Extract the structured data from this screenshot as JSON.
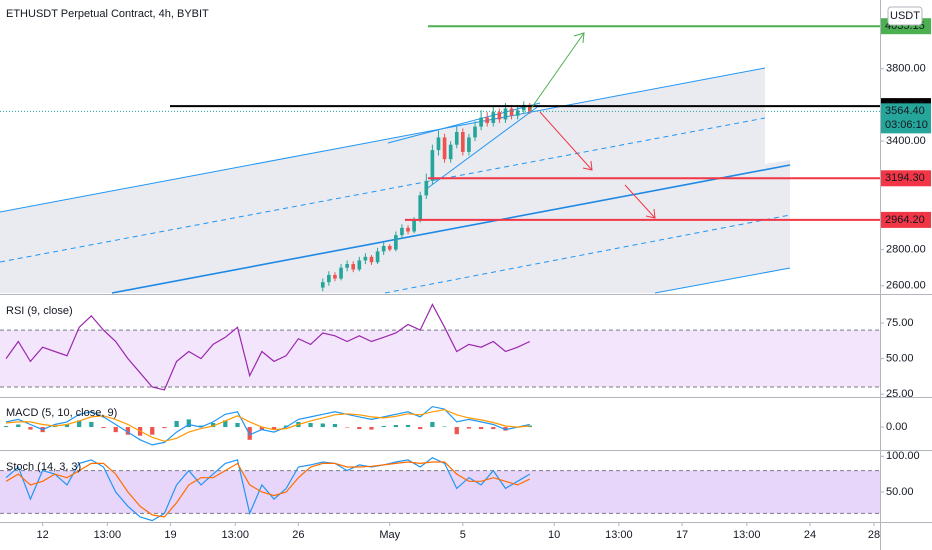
{
  "chart_data": [
    {
      "type": "candlestick",
      "title": "ETHUSDT Perpetual Contract, 4h, BYBIT",
      "currency": "USDT",
      "x": [
        92,
        94,
        96,
        98,
        100,
        102,
        104,
        106,
        108,
        110,
        112,
        114,
        116,
        118,
        120,
        122,
        124,
        126,
        128,
        130,
        132,
        134,
        136,
        138,
        140,
        142,
        144,
        146,
        148,
        150,
        152,
        154,
        156,
        158,
        160
      ],
      "open": [
        2590,
        2620,
        2660,
        2640,
        2700,
        2720,
        2690,
        2740,
        2760,
        2730,
        2790,
        2820,
        2800,
        2880,
        2920,
        2900,
        2960,
        3100,
        3180,
        3350,
        3420,
        3300,
        3380,
        3450,
        3340,
        3420,
        3480,
        3530,
        3500,
        3560,
        3520,
        3580,
        3540,
        3570,
        3600
      ],
      "high": [
        2640,
        2680,
        2675,
        2720,
        2740,
        2735,
        2760,
        2780,
        2770,
        2810,
        2840,
        2830,
        2900,
        2940,
        2935,
        2980,
        3120,
        3220,
        3380,
        3460,
        3440,
        3400,
        3480,
        3470,
        3440,
        3510,
        3570,
        3560,
        3590,
        3580,
        3610,
        3600,
        3590,
        3620,
        3610
      ],
      "low": [
        2570,
        2600,
        2625,
        2630,
        2680,
        2675,
        2680,
        2720,
        2715,
        2720,
        2770,
        2790,
        2790,
        2860,
        2885,
        2890,
        2950,
        3080,
        3160,
        3320,
        3280,
        3280,
        3360,
        3320,
        3320,
        3400,
        3460,
        3480,
        3480,
        3500,
        3500,
        3520,
        3520,
        3550,
        3550
      ],
      "close": [
        2620,
        2660,
        2640,
        2700,
        2720,
        2690,
        2740,
        2760,
        2730,
        2790,
        2820,
        2800,
        2880,
        2920,
        2900,
        2960,
        3100,
        3180,
        3350,
        3420,
        3300,
        3380,
        3450,
        3340,
        3420,
        3480,
        3530,
        3500,
        3560,
        3520,
        3580,
        3540,
        3570,
        3600,
        3564.4
      ],
      "last_label": "3564.40",
      "countdown": "03:06:10",
      "up_color": "#26a69a",
      "down_color": "#ef5350",
      "xlim": [
        -14,
        275
      ],
      "ylim": [
        2560,
        4180
      ],
      "yticks": [
        {
          "value": 2600,
          "label": "2600.00"
        },
        {
          "value": 2800,
          "label": "2800.00"
        },
        {
          "value": 3400,
          "label": "3400.00"
        },
        {
          "value": 3800,
          "label": "3800.00"
        }
      ],
      "hlines": [
        {
          "value": 4035.15,
          "color": "#4caf50"
        },
        {
          "value": 3593.35,
          "color": "#000000"
        },
        {
          "value": 3194.3,
          "label": "3194.30",
          "color": "#f23645"
        },
        {
          "value": 2964.2,
          "label": "2964.20",
          "color": "#f23645"
        }
      ]
    },
    {
      "type": "line",
      "title": "RSI (9, close)",
      "x": [
        -12,
        -8,
        -4,
        0,
        4,
        8,
        12,
        16,
        20,
        24,
        28,
        32,
        36,
        40,
        44,
        48,
        52,
        56,
        60,
        64,
        68,
        72,
        76,
        80,
        84,
        88,
        92,
        96,
        100,
        104,
        108,
        112,
        116,
        120,
        124,
        128,
        132,
        136,
        140,
        144,
        148,
        152,
        156,
        160
      ],
      "series": [
        {
          "color": "#9c27b0",
          "values": [
            50,
            62,
            48,
            58,
            55,
            52,
            72,
            80,
            70,
            62,
            50,
            40,
            30,
            28,
            48,
            55,
            50,
            60,
            65,
            72,
            38,
            55,
            48,
            52,
            64,
            60,
            68,
            66,
            62,
            66,
            62,
            65,
            68,
            74,
            70,
            88,
            72,
            55,
            60,
            58,
            62,
            55,
            58,
            62
          ]
        }
      ],
      "bands": [
        30,
        70
      ],
      "band_color": "#f3e5fb",
      "xlim": [
        -14,
        275
      ],
      "ylim": [
        23,
        94
      ],
      "yticks": [
        {
          "value": 25,
          "label": "25.00"
        },
        {
          "value": 50,
          "label": "50.00"
        },
        {
          "value": 75,
          "label": "75.00"
        }
      ]
    },
    {
      "type": "line",
      "title": "MACD (5, 10, close, 9)",
      "x": [
        -12,
        -8,
        -4,
        0,
        4,
        8,
        12,
        16,
        20,
        24,
        28,
        32,
        36,
        40,
        44,
        48,
        52,
        56,
        60,
        64,
        68,
        72,
        76,
        80,
        84,
        88,
        92,
        96,
        100,
        104,
        108,
        112,
        116,
        120,
        124,
        128,
        132,
        136,
        140,
        144,
        148,
        152,
        156,
        160
      ],
      "series": [
        {
          "color": "#2196f3",
          "values": [
            10,
            15,
            5,
            -5,
            5,
            10,
            25,
            30,
            20,
            5,
            -10,
            -25,
            -35,
            -30,
            -10,
            5,
            0,
            10,
            25,
            30,
            -15,
            -5,
            -10,
            0,
            15,
            20,
            25,
            30,
            25,
            20,
            15,
            20,
            25,
            30,
            20,
            40,
            35,
            10,
            15,
            10,
            5,
            -5,
            0,
            5
          ]
        },
        {
          "color": "#ff9800",
          "values": [
            8,
            10,
            10,
            5,
            2,
            5,
            12,
            20,
            22,
            15,
            5,
            -8,
            -20,
            -28,
            -22,
            -10,
            -3,
            2,
            12,
            22,
            10,
            0,
            -5,
            -3,
            5,
            12,
            18,
            24,
            26,
            24,
            20,
            18,
            21,
            26,
            24,
            30,
            34,
            24,
            18,
            14,
            9,
            2,
            0,
            2
          ]
        }
      ],
      "histogram": [
        2,
        5,
        -5,
        -10,
        3,
        5,
        13,
        10,
        -2,
        -10,
        -15,
        -17,
        -15,
        -2,
        12,
        15,
        3,
        8,
        13,
        8,
        -25,
        -5,
        -5,
        3,
        10,
        8,
        7,
        6,
        -1,
        -4,
        -5,
        2,
        4,
        4,
        -4,
        10,
        1,
        -14,
        -3,
        -4,
        -4,
        -7,
        0,
        3
      ],
      "up_color": "#26a69a",
      "down_color": "#ef5350",
      "xlim": [
        -14,
        275
      ],
      "ylim": [
        -45,
        55
      ],
      "yticks": [
        {
          "value": 0,
          "label": "0.00"
        }
      ]
    },
    {
      "type": "line",
      "title": "Stoch (14, 3, 3)",
      "x": [
        -12,
        -8,
        -4,
        0,
        4,
        8,
        12,
        16,
        20,
        24,
        28,
        32,
        36,
        40,
        44,
        48,
        52,
        56,
        60,
        64,
        68,
        72,
        76,
        80,
        84,
        88,
        92,
        96,
        100,
        104,
        108,
        112,
        116,
        120,
        124,
        128,
        132,
        136,
        140,
        144,
        148,
        152,
        156,
        160
      ],
      "series": [
        {
          "color": "#2196f3",
          "values": [
            70,
            85,
            40,
            80,
            75,
            60,
            90,
            95,
            85,
            50,
            30,
            15,
            10,
            20,
            60,
            80,
            60,
            75,
            90,
            95,
            20,
            60,
            40,
            55,
            85,
            88,
            92,
            90,
            80,
            88,
            85,
            88,
            92,
            95,
            85,
            98,
            90,
            55,
            70,
            60,
            80,
            55,
            65,
            75
          ]
        },
        {
          "color": "#ff6d00",
          "values": [
            65,
            75,
            60,
            65,
            75,
            70,
            80,
            90,
            90,
            75,
            50,
            30,
            18,
            15,
            35,
            60,
            70,
            70,
            80,
            90,
            60,
            50,
            45,
            50,
            70,
            85,
            90,
            90,
            85,
            85,
            86,
            88,
            90,
            92,
            90,
            92,
            92,
            75,
            65,
            65,
            70,
            65,
            60,
            68
          ]
        }
      ],
      "bands": [
        20,
        80
      ],
      "band_color": "#e8d5fa",
      "xlim": [
        -14,
        275
      ],
      "ylim": [
        8,
        106
      ],
      "yticks": [
        {
          "value": 50,
          "label": "50.00"
        },
        {
          "value": 100,
          "label": "100.00"
        }
      ],
      "xticks": [
        {
          "value": 0,
          "label": "12"
        },
        {
          "value": 21.25,
          "label": "13:00"
        },
        {
          "value": 42,
          "label": "19"
        },
        {
          "value": 63.25,
          "label": "13:00"
        },
        {
          "value": 84,
          "label": "26"
        },
        {
          "value": 114,
          "label": "May"
        },
        {
          "value": 138,
          "label": "5"
        },
        {
          "value": 168,
          "label": "10"
        },
        {
          "value": 189.25,
          "label": "13:00"
        },
        {
          "value": 210,
          "label": "17"
        },
        {
          "value": 231.25,
          "label": "13:00"
        },
        {
          "value": 252,
          "label": "24"
        },
        {
          "value": 276,
          "label": "28"
        }
      ]
    }
  ]
}
